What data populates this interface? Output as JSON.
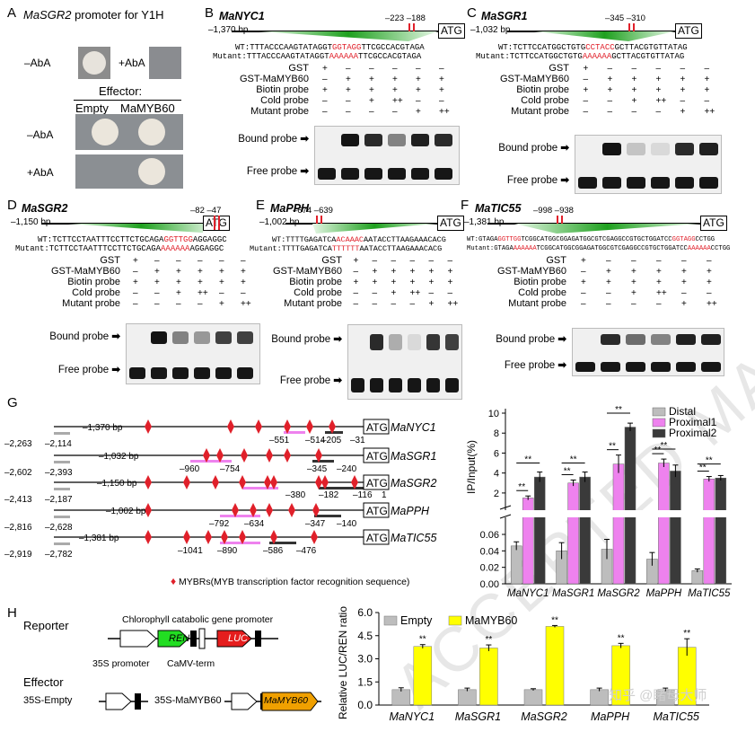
{
  "panels": {
    "A": {
      "label": "A",
      "title_gene": "MaSGR2",
      "title_rest": " promoter for Y1H",
      "minus_aba": "–AbA",
      "plus_aba": "+AbA",
      "effector": "Effector:",
      "empty": "Empty",
      "mamyb60": "MaMYB60",
      "row1": "–AbA",
      "row2": "+AbA"
    },
    "B": {
      "label": "B",
      "gene": "MaNYC1",
      "bp": "–1,370 bp",
      "pos1": "–223",
      "pos2": "–188",
      "atg": "ATG",
      "wt_pre": "WT:TTTACCCAAGTATAGGT",
      "wt_red": "GGTAGG",
      "wt_post": "TTCGCCACGTAGA",
      "mut_pre": "Mutant:TTTACCCAAGTATAGGT",
      "mut_red": "AAAAAA",
      "mut_post": "TTCGCCACGTAGA"
    },
    "C": {
      "label": "C",
      "gene": "MaSGR1",
      "bp": "–1,032 bp",
      "pos1": "–345",
      "pos2": "–310",
      "atg": "ATG",
      "wt_pre": "WT:TCTTCCATGGCTGTG",
      "wt_red": "CCTACC",
      "wt_post": "GCTTACGTGTTATAG",
      "mut_pre": "Mutant:TCTTCCATGGCTGTG",
      "mut_red": "AAAAAA",
      "mut_post": "GCTTACGTGTTATAG"
    },
    "D": {
      "label": "D",
      "gene": "MaSGR2",
      "bp": "–1,150 bp",
      "pos1": "–82",
      "pos2": "–47",
      "atg": "ATG",
      "wt_pre": "WT:TCTTCCTAATTTCCTTCTGCAGA",
      "wt_red": "GGTTGG",
      "wt_post": "AGGAGGC",
      "mut_pre": "Mutant:TCTTCCTAATTTCCTTCTGCAGA",
      "mut_red": "AAAAAA",
      "mut_post": "AGGAGGC"
    },
    "E": {
      "label": "E",
      "gene": "MaPPH",
      "bp": "–1,002 bp",
      "pos1": "–674",
      "pos2": "–639",
      "atg": "ATG",
      "wt_pre": "WT:TTTTGAGATCA",
      "wt_red": "ACAAAC",
      "wt_post": "AATACCTTAAGAAACACG",
      "mut_pre": "Mutant:TTTTGAGATCA",
      "mut_red": "TTTTTT",
      "mut_post": "AATACCTTAAGAAACACG"
    },
    "F": {
      "label": "F",
      "gene": "MaTIC55",
      "bp": "–1,381 bp",
      "pos1": "–998",
      "pos2": "–938",
      "atg": "ATG",
      "wt_pre": "WT:GTAGA",
      "wt_red": "GGTTGG",
      "wt_mid": "TCGGCATGGCGGAGATGGCGTCGAGGCCGTGCTGGATCC",
      "wt_red2": "GGTAGG",
      "wt_post": "CCTGG",
      "mut_pre": "Mutant:GTAGA",
      "mut_red": "AAAAAA",
      "mut_mid": "TCGGCATGGCGGAGATGGCGTCGAGGCCGTGCTGGATCC",
      "mut_red2": "AAAAAA",
      "mut_post": "CCTGG"
    }
  },
  "emsa": {
    "rows": [
      "GST",
      "GST-MaMYB60",
      "Biotin probe",
      "Cold probe",
      "Mutant probe"
    ],
    "vals": [
      [
        "+",
        "–",
        "–",
        "–",
        "–",
        "–"
      ],
      [
        "–",
        "+",
        "+",
        "+",
        "+",
        "+"
      ],
      [
        "+",
        "+",
        "+",
        "+",
        "+",
        "+"
      ],
      [
        "–",
        "–",
        "+",
        "++",
        "–",
        "–"
      ],
      [
        "–",
        "–",
        "–",
        "–",
        "+",
        "++"
      ]
    ],
    "bound": "Bound probe",
    "free": "Free probe"
  },
  "G": {
    "label": "G",
    "genes": [
      {
        "name": "MaNYC1",
        "bp": "–1,370 bp",
        "left": "–2,263",
        "left2": "–2,114",
        "m1": "–551",
        "m2": "–514",
        "m3": "–205",
        "m4": "–31",
        "atg": "ATG"
      },
      {
        "name": "MaSGR1",
        "bp": "–1,032 bp",
        "left": "–2,602",
        "left2": "–2,393",
        "m1": "–960",
        "m2": "–754",
        "m3": "–345",
        "m4": "–240",
        "atg": "ATG"
      },
      {
        "name": "MaSGR2",
        "bp": "–1,150 bp",
        "left": "–2,413",
        "left2": "–2,187",
        "m1": "–380",
        "m2": "–182",
        "m3": "–116",
        "m4": "1",
        "atg": "ATG"
      },
      {
        "name": "MaPPH",
        "bp": "–1,002 bp",
        "left": "–2,816",
        "left2": "–2,628",
        "m1": "–792",
        "m2": "–634",
        "m3": "–347",
        "m4": "–140",
        "atg": "ATG"
      },
      {
        "name": "MaTIC55",
        "bp": "–1,381 bp",
        "left": "–2,919",
        "left2": "–2,782",
        "m1": "–1041",
        "m2": "–890",
        "m3": "–586",
        "m4": "–476",
        "atg": "ATG"
      }
    ],
    "legend": "MYBRs(MYB transcription factor recognition sequence)"
  },
  "H": {
    "label": "H",
    "reporter": "Reporter",
    "ccg": "Chlorophyll catabolic gene promoter",
    "ren": "REN",
    "luc": "LUC",
    "p35s": "35S promoter",
    "camv": "CaMV-term",
    "effector": "Effector",
    "s35empty": "35S-Empty",
    "s35myb": "35S-MaMYB60",
    "mamyb60": "MaMYB60"
  },
  "chart_data": [
    {
      "type": "bar",
      "ylabel": "IP/Input(%)",
      "categories": [
        "MaNYC1",
        "MaSGR1",
        "MaSGR2",
        "MaPPH",
        "MaTIC55"
      ],
      "series": [
        {
          "name": "Distal",
          "color": "#bdbdbd",
          "values": [
            0.046,
            0.04,
            0.042,
            0.03,
            0.016
          ],
          "err": [
            0.005,
            0.01,
            0.012,
            0.008,
            0.002
          ]
        },
        {
          "name": "Proximal1",
          "color": "#ee82ee",
          "values": [
            1.5,
            3.0,
            4.9,
            5.0,
            3.4
          ],
          "err": [
            0.2,
            0.3,
            0.9,
            0.4,
            0.25
          ]
        },
        {
          "name": "Proximal2",
          "color": "#3a3a3a",
          "values": [
            3.6,
            3.6,
            8.6,
            4.2,
            3.5
          ],
          "err": [
            0.5,
            0.5,
            0.4,
            0.6,
            0.25
          ]
        }
      ],
      "lower_ticks": [
        "0.00",
        "0.02",
        "0.04",
        "0.06"
      ],
      "upper_ticks": [
        "2",
        "4",
        "6",
        "8",
        "10"
      ],
      "sig": "**"
    },
    {
      "type": "bar",
      "ylabel": "Relative LUC/REN ratio",
      "categories": [
        "MaNYC1",
        "MaSGR1",
        "MaSGR2",
        "MaPPH",
        "MaTIC55"
      ],
      "series": [
        {
          "name": "Empty",
          "color": "#bdbdbd",
          "values": [
            1.0,
            1.0,
            1.0,
            1.0,
            1.0
          ],
          "err": [
            0.12,
            0.1,
            0.06,
            0.1,
            0.1
          ]
        },
        {
          "name": "MaMYB60",
          "color": "#ffff00",
          "values": [
            3.8,
            3.7,
            5.1,
            3.85,
            3.75
          ],
          "err": [
            0.12,
            0.2,
            0.06,
            0.15,
            0.55
          ]
        }
      ],
      "ylim": [
        0,
        6
      ],
      "ticks": [
        "0.0",
        "1.5",
        "3.0",
        "4.5",
        "6.0"
      ],
      "sig": "**"
    }
  ],
  "watermark": "ACCEPTED MANUSCRIPT",
  "brand": "知乎 @睹母大师"
}
